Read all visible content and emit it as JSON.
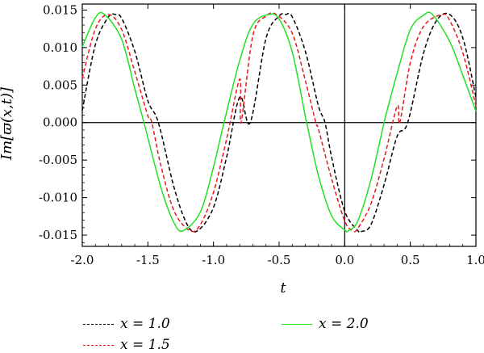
{
  "chart_data": {
    "type": "line",
    "xlabel": "t",
    "ylabel": "Im[ϖ(x,t)]",
    "xlim": [
      -2.0,
      1.0
    ],
    "ylim": [
      -0.0165,
      0.0158
    ],
    "xticks": [
      "-2.0",
      "-1.5",
      "-1.0",
      "-0.5",
      "0.0",
      "0.5",
      "1.0"
    ],
    "xtick_values": [
      -2.0,
      -1.5,
      -1.0,
      -0.5,
      0.0,
      0.5,
      1.0
    ],
    "yticks": [
      "-0.015",
      "-0.010",
      "-0.005",
      "0.000",
      "0.005",
      "0.010",
      "0.015"
    ],
    "ytick_values": [
      -0.015,
      -0.01,
      -0.005,
      0.0,
      0.005,
      0.01,
      0.015
    ],
    "grid": false,
    "axes_through_origin": true,
    "legend_position": "bottom",
    "series": [
      {
        "name": "x = 1.0",
        "color": "#000000",
        "dash": "dashed",
        "x": [
          -2.0,
          -1.9,
          -1.8,
          -1.75,
          -1.7,
          -1.6,
          -1.5,
          -1.42,
          -1.3,
          -1.2,
          -1.12,
          -1.0,
          -0.9,
          -0.8,
          -0.72,
          -0.6,
          -0.5,
          -0.45,
          -0.4,
          -0.3,
          -0.2,
          -0.15,
          -0.1,
          0.0,
          0.1,
          0.13,
          0.2,
          0.3,
          0.4,
          0.48,
          0.6,
          0.7,
          0.8,
          0.9,
          1.0
        ],
        "y": [
          0.0016,
          0.0104,
          0.0141,
          0.0144,
          0.0139,
          0.0095,
          0.0029,
          0.0,
          -0.0087,
          -0.0136,
          -0.0144,
          -0.0113,
          -0.0046,
          0.0034,
          0.0,
          0.0112,
          0.0142,
          0.0144,
          0.0141,
          0.0095,
          0.0022,
          0.0,
          -0.0046,
          -0.0118,
          -0.0144,
          -0.0145,
          -0.0136,
          -0.0083,
          -0.0018,
          0.0,
          0.0092,
          0.0136,
          0.0144,
          0.0113,
          0.0034
        ]
      },
      {
        "name": "x = 1.5",
        "color": "#e8191e",
        "dash": "dashed",
        "x": [
          -2.0,
          -1.9,
          -1.8,
          -1.7,
          -1.6,
          -1.5,
          -1.47,
          -1.4,
          -1.3,
          -1.18,
          -1.1,
          -1.0,
          -0.9,
          -0.8,
          -0.79,
          -0.7,
          -0.6,
          -0.52,
          -0.4,
          -0.3,
          -0.22,
          -0.2,
          -0.1,
          0.0,
          0.06,
          0.1,
          0.2,
          0.3,
          0.4,
          0.42,
          0.5,
          0.6,
          0.74,
          0.8,
          0.9,
          1.0
        ],
        "y": [
          0.0059,
          0.0125,
          0.0144,
          0.0124,
          0.0068,
          0.0009,
          0.0,
          -0.0058,
          -0.0118,
          -0.0144,
          -0.0136,
          -0.0093,
          -0.0022,
          0.0058,
          0.0,
          0.0116,
          0.0142,
          0.0144,
          0.0119,
          0.0056,
          0.0,
          -0.0009,
          -0.0075,
          -0.0131,
          -0.0144,
          -0.0141,
          -0.0108,
          -0.0048,
          0.0022,
          0.0,
          0.008,
          0.0128,
          0.0144,
          0.0136,
          0.0093,
          0.0022
        ]
      },
      {
        "name": "x = 2.0",
        "color": "#22e122",
        "dash": "solid",
        "x": [
          -2.0,
          -1.9,
          -1.83,
          -1.7,
          -1.6,
          -1.53,
          -1.4,
          -1.3,
          -1.23,
          -1.1,
          -1.0,
          -0.92,
          -0.8,
          -0.7,
          -0.58,
          -0.5,
          -0.4,
          -0.3,
          -0.29,
          -0.2,
          -0.1,
          0.0,
          0.03,
          0.1,
          0.2,
          0.3,
          0.35,
          0.4,
          0.5,
          0.6,
          0.67,
          0.8,
          0.9,
          1.0
        ],
        "y": [
          0.0101,
          0.014,
          0.0144,
          0.0111,
          0.0045,
          0.0,
          -0.0087,
          -0.0134,
          -0.0144,
          -0.0119,
          -0.0059,
          0.0,
          0.0083,
          0.0131,
          0.0144,
          0.0138,
          0.0094,
          0.0008,
          0.0,
          -0.0071,
          -0.0124,
          -0.0143,
          -0.0144,
          -0.0131,
          -0.0076,
          0.0,
          0.0034,
          0.0066,
          0.0124,
          0.0143,
          0.0144,
          0.0108,
          0.0063,
          0.0015
        ]
      }
    ]
  },
  "legend": {
    "items": [
      {
        "label": "x = 1.0",
        "color": "#000000",
        "style": "dashed"
      },
      {
        "label": "x = 1.5",
        "color": "#e8191e",
        "style": "dashed"
      },
      {
        "label": "x = 2.0",
        "color": "#22e122",
        "style": "solid"
      }
    ]
  }
}
